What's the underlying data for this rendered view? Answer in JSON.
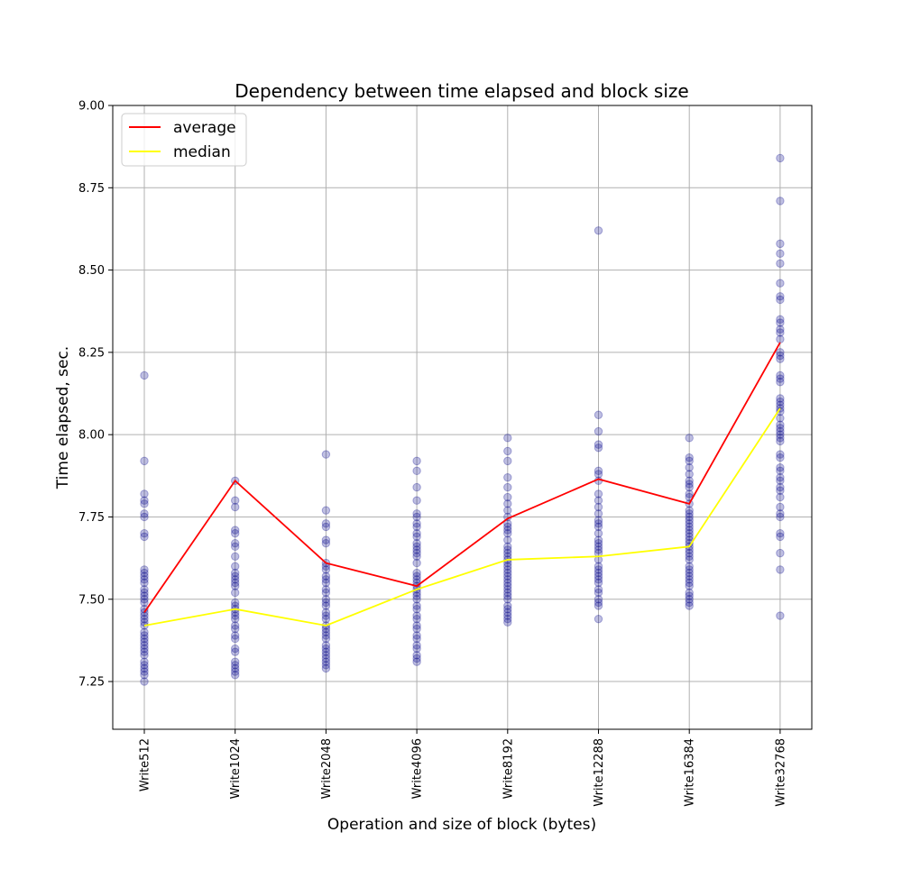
{
  "chart_data": {
    "type": "scatter",
    "title": "Dependency between time elapsed and block size",
    "xlabel": "Operation and size of block (bytes)",
    "ylabel": "Time elapsed, sec.",
    "categories": [
      "Write512",
      "Write1024",
      "Write2048",
      "Write4096",
      "Write8192",
      "Write12288",
      "Write16384",
      "Write32768"
    ],
    "ylim": [
      7.105,
      9.0
    ],
    "yticks": [
      "7.25",
      "7.50",
      "7.75",
      "8.00",
      "8.25",
      "8.50",
      "8.75",
      "9.00"
    ],
    "grid": true,
    "legend_position": "top-left",
    "points_color": "#00008b",
    "series": [
      {
        "name": "average",
        "color": "#ff0000",
        "values": [
          7.46,
          7.86,
          7.61,
          7.54,
          7.745,
          7.865,
          7.79,
          8.28
        ]
      },
      {
        "name": "median",
        "color": "#ffff00",
        "values": [
          7.42,
          7.47,
          7.42,
          7.53,
          7.62,
          7.63,
          7.66,
          8.08
        ]
      }
    ],
    "scatter": [
      [
        8.18,
        7.92,
        7.82,
        7.8,
        7.79,
        7.76,
        7.75,
        7.7,
        7.69,
        7.59,
        7.58,
        7.57,
        7.56,
        7.55,
        7.53,
        7.52,
        7.51,
        7.5,
        7.49,
        7.47,
        7.46,
        7.45,
        7.44,
        7.43,
        7.42,
        7.4,
        7.39,
        7.38,
        7.37,
        7.36,
        7.35,
        7.34,
        7.33,
        7.31,
        7.3,
        7.29,
        7.28,
        7.27,
        7.25
      ],
      [
        7.86,
        7.8,
        7.78,
        7.71,
        7.7,
        7.67,
        7.66,
        7.63,
        7.6,
        7.58,
        7.57,
        7.56,
        7.55,
        7.54,
        7.52,
        7.49,
        7.48,
        7.47,
        7.46,
        7.45,
        7.44,
        7.42,
        7.41,
        7.39,
        7.38,
        7.35,
        7.34,
        7.31,
        7.3,
        7.29,
        7.28,
        7.27
      ],
      [
        7.94,
        7.77,
        7.73,
        7.72,
        7.68,
        7.67,
        7.61,
        7.6,
        7.59,
        7.57,
        7.56,
        7.55,
        7.53,
        7.52,
        7.5,
        7.49,
        7.48,
        7.46,
        7.45,
        7.44,
        7.42,
        7.41,
        7.4,
        7.39,
        7.38,
        7.36,
        7.35,
        7.34,
        7.33,
        7.32,
        7.31,
        7.3,
        7.29
      ],
      [
        7.92,
        7.89,
        7.84,
        7.8,
        7.76,
        7.75,
        7.73,
        7.72,
        7.7,
        7.69,
        7.67,
        7.66,
        7.65,
        7.64,
        7.63,
        7.61,
        7.58,
        7.57,
        7.56,
        7.55,
        7.54,
        7.53,
        7.52,
        7.51,
        7.5,
        7.48,
        7.47,
        7.45,
        7.44,
        7.42,
        7.41,
        7.39,
        7.38,
        7.36,
        7.35,
        7.33,
        7.32,
        7.31
      ],
      [
        7.99,
        7.95,
        7.92,
        7.87,
        7.84,
        7.81,
        7.79,
        7.77,
        7.75,
        7.73,
        7.72,
        7.71,
        7.7,
        7.68,
        7.66,
        7.65,
        7.64,
        7.63,
        7.62,
        7.61,
        7.6,
        7.59,
        7.58,
        7.57,
        7.56,
        7.55,
        7.54,
        7.53,
        7.52,
        7.51,
        7.5,
        7.48,
        7.47,
        7.46,
        7.45,
        7.44,
        7.43
      ],
      [
        8.62,
        8.06,
        8.01,
        7.97,
        7.96,
        7.89,
        7.88,
        7.86,
        7.82,
        7.8,
        7.78,
        7.76,
        7.74,
        7.73,
        7.72,
        7.7,
        7.68,
        7.67,
        7.66,
        7.65,
        7.64,
        7.62,
        7.6,
        7.59,
        7.58,
        7.57,
        7.56,
        7.55,
        7.53,
        7.52,
        7.5,
        7.49,
        7.48,
        7.44
      ],
      [
        7.99,
        7.93,
        7.92,
        7.9,
        7.88,
        7.86,
        7.85,
        7.84,
        7.82,
        7.81,
        7.79,
        7.77,
        7.76,
        7.75,
        7.74,
        7.73,
        7.72,
        7.71,
        7.7,
        7.69,
        7.68,
        7.67,
        7.66,
        7.65,
        7.64,
        7.63,
        7.62,
        7.6,
        7.59,
        7.58,
        7.57,
        7.56,
        7.55,
        7.54,
        7.52,
        7.51,
        7.5,
        7.49,
        7.48
      ],
      [
        8.84,
        8.71,
        8.58,
        8.55,
        8.52,
        8.46,
        8.42,
        8.41,
        8.35,
        8.34,
        8.32,
        8.31,
        8.29,
        8.25,
        8.24,
        8.23,
        8.18,
        8.17,
        8.16,
        8.11,
        8.1,
        8.09,
        8.08,
        8.07,
        8.05,
        8.03,
        8.02,
        8.01,
        8.0,
        7.99,
        7.98,
        7.94,
        7.93,
        7.9,
        7.89,
        7.87,
        7.86,
        7.84,
        7.83,
        7.81,
        7.78,
        7.76,
        7.75,
        7.7,
        7.69,
        7.64,
        7.59,
        7.45
      ]
    ]
  }
}
